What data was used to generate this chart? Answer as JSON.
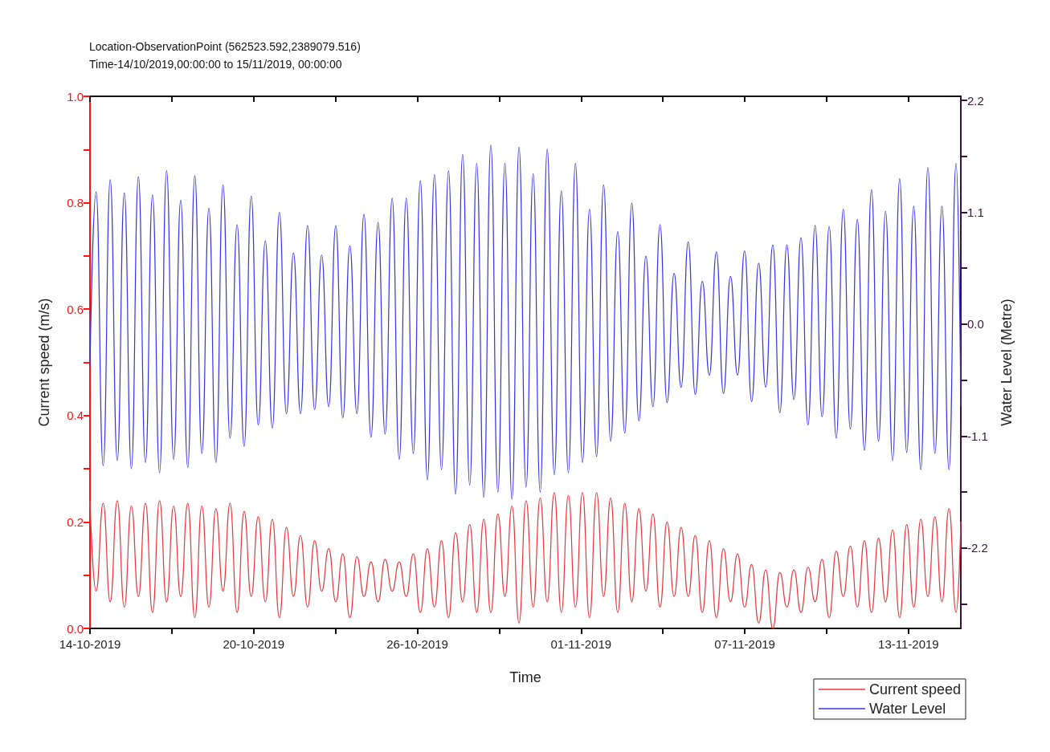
{
  "chart_data": {
    "type": "line",
    "title": "Location-ObservationPoint (562523.592,2389079.516)",
    "subtitle": "Time-14/10/2019,00:00:00 to 15/11/2019, 00:00:00",
    "xlabel": "Time",
    "ylabel": "Current speed (m/s)",
    "y2label": "Water Level (Metre)",
    "x": [
      "2019-10-14T00:00",
      "2019-10-14T05:24",
      "2019-10-14T11:36",
      "2019-10-14T17:48",
      "2019-10-15T00:00",
      "2019-10-15T06:12",
      "2019-10-15T12:24",
      "2019-10-15T18:36",
      "2019-10-16T00:48",
      "2019-10-16T07:00",
      "2019-10-16T13:12",
      "2019-10-16T19:24",
      "2019-10-17T01:36",
      "2019-10-17T07:48",
      "2019-10-17T14:00",
      "2019-10-17T20:12",
      "2019-10-18T02:24",
      "2019-10-18T08:36",
      "2019-10-18T14:48",
      "2019-10-18T21:00",
      "2019-10-19T03:12",
      "2019-10-19T09:24",
      "2019-10-19T15:36",
      "2019-10-19T21:48",
      "2019-10-20T04:00",
      "2019-10-20T10:12",
      "2019-10-20T16:24",
      "2019-10-20T22:36",
      "2019-10-21T04:48",
      "2019-10-21T11:00",
      "2019-10-21T17:12",
      "2019-10-21T23:24",
      "2019-10-22T05:36",
      "2019-10-22T11:48",
      "2019-10-22T18:00",
      "2019-10-23T00:12",
      "2019-10-23T06:24",
      "2019-10-23T12:36",
      "2019-10-23T18:48",
      "2019-10-24T01:00",
      "2019-10-24T07:12",
      "2019-10-24T13:24",
      "2019-10-24T19:36",
      "2019-10-25T01:48",
      "2019-10-25T08:00",
      "2019-10-25T14:12",
      "2019-10-25T20:24",
      "2019-10-26T02:36",
      "2019-10-26T08:48",
      "2019-10-26T15:00",
      "2019-10-26T21:12",
      "2019-10-27T03:24",
      "2019-10-27T09:36",
      "2019-10-27T15:48",
      "2019-10-27T22:00",
      "2019-10-28T04:12",
      "2019-10-28T10:24",
      "2019-10-28T16:36",
      "2019-10-28T22:48",
      "2019-10-29T05:00",
      "2019-10-29T11:12",
      "2019-10-29T17:24",
      "2019-10-29T23:36",
      "2019-10-30T05:48",
      "2019-10-30T12:00",
      "2019-10-30T18:12",
      "2019-10-31T00:24",
      "2019-10-31T06:36",
      "2019-10-31T12:48",
      "2019-10-31T19:00",
      "2019-11-01T01:12",
      "2019-11-01T07:24",
      "2019-11-01T13:36",
      "2019-11-01T19:48",
      "2019-11-02T02:00",
      "2019-11-02T08:12",
      "2019-11-02T14:24",
      "2019-11-02T20:36",
      "2019-11-03T02:48",
      "2019-11-03T09:00",
      "2019-11-03T15:12",
      "2019-11-03T21:24",
      "2019-11-04T03:36",
      "2019-11-04T09:48",
      "2019-11-04T16:00",
      "2019-11-04T22:12",
      "2019-11-05T04:24",
      "2019-11-05T10:36",
      "2019-11-05T16:48",
      "2019-11-05T23:00",
      "2019-11-06T05:12",
      "2019-11-06T11:24",
      "2019-11-06T17:36",
      "2019-11-06T23:48",
      "2019-11-07T06:00",
      "2019-11-07T12:12",
      "2019-11-07T18:24",
      "2019-11-08T00:36",
      "2019-11-08T06:48",
      "2019-11-08T13:00",
      "2019-11-08T19:12",
      "2019-11-09T01:24",
      "2019-11-09T07:36",
      "2019-11-09T13:48",
      "2019-11-09T20:00",
      "2019-11-10T02:12",
      "2019-11-10T08:24",
      "2019-11-10T14:36",
      "2019-11-10T20:48",
      "2019-11-11T03:00",
      "2019-11-11T09:12",
      "2019-11-11T15:24",
      "2019-11-11T21:36",
      "2019-11-12T03:48",
      "2019-11-12T10:00",
      "2019-11-12T16:12",
      "2019-11-12T22:24",
      "2019-11-13T04:36",
      "2019-11-13T10:48",
      "2019-11-13T17:00",
      "2019-11-13T23:12",
      "2019-11-14T05:24",
      "2019-11-14T11:36",
      "2019-11-14T17:48",
      "2019-11-14T22:00"
    ],
    "series": [
      {
        "name": "Current speed",
        "color": "#e8363a",
        "axis": "y",
        "values": [
          0.24,
          0.07,
          0.235,
          0.05,
          0.24,
          0.04,
          0.23,
          0.06,
          0.235,
          0.03,
          0.24,
          0.05,
          0.23,
          0.06,
          0.235,
          0.02,
          0.23,
          0.04,
          0.225,
          0.07,
          0.235,
          0.03,
          0.22,
          0.06,
          0.21,
          0.05,
          0.205,
          0.02,
          0.19,
          0.06,
          0.175,
          0.04,
          0.165,
          0.07,
          0.15,
          0.05,
          0.14,
          0.02,
          0.135,
          0.06,
          0.125,
          0.05,
          0.13,
          0.07,
          0.125,
          0.06,
          0.14,
          0.03,
          0.15,
          0.04,
          0.165,
          0.02,
          0.18,
          0.05,
          0.195,
          0.03,
          0.205,
          0.03,
          0.215,
          0.06,
          0.23,
          0.01,
          0.24,
          0.04,
          0.245,
          0.05,
          0.255,
          0.03,
          0.25,
          0.04,
          0.255,
          0.02,
          0.255,
          0.06,
          0.245,
          0.03,
          0.235,
          0.05,
          0.225,
          0.07,
          0.215,
          0.04,
          0.2,
          0.06,
          0.19,
          0.06,
          0.175,
          0.03,
          0.165,
          0.02,
          0.15,
          0.05,
          0.14,
          0.04,
          0.12,
          0.01,
          0.11,
          0.0,
          0.105,
          0.04,
          0.11,
          0.03,
          0.115,
          0.05,
          0.13,
          0.02,
          0.145,
          0.06,
          0.155,
          0.04,
          0.165,
          0.03,
          0.17,
          0.05,
          0.185,
          0.02,
          0.195,
          0.04,
          0.205,
          0.06,
          0.21,
          0.05,
          0.225,
          0.03,
          0.2
        ]
      },
      {
        "name": "Water Level",
        "color": "#3535e0",
        "axis": "y2",
        "values": [
          -0.4,
          1.3,
          -1.39,
          1.42,
          -1.34,
          1.29,
          -1.42,
          1.45,
          -1.36,
          1.27,
          -1.46,
          1.51,
          -1.33,
          1.22,
          -1.41,
          1.46,
          -1.27,
          1.14,
          -1.36,
          1.37,
          -1.12,
          0.98,
          -1.2,
          1.26,
          -0.99,
          0.82,
          -1.02,
          1.1,
          -0.88,
          0.7,
          -0.88,
          0.97,
          -0.84,
          0.68,
          -0.81,
          0.97,
          -0.92,
          0.77,
          -0.88,
          1.08,
          -1.11,
          1.0,
          -1.08,
          1.24,
          -1.33,
          1.24,
          -1.27,
          1.41,
          -1.53,
          1.47,
          -1.43,
          1.51,
          -1.67,
          1.67,
          -1.58,
          1.58,
          -1.7,
          1.76,
          -1.65,
          1.58,
          -1.72,
          1.74,
          -1.6,
          1.48,
          -1.65,
          1.72,
          -1.48,
          1.31,
          -1.46,
          1.58,
          -1.36,
          1.13,
          -1.3,
          1.37,
          -1.15,
          0.91,
          -1.07,
          1.19,
          -0.95,
          0.67,
          -0.81,
          0.98,
          -0.77,
          0.5,
          -0.62,
          0.81,
          -0.69,
          0.42,
          -0.5,
          0.71,
          -0.68,
          0.47,
          -0.5,
          0.72,
          -0.76,
          0.6,
          -0.62,
          0.78,
          -0.87,
          0.78,
          -0.74,
          0.85,
          -0.99,
          0.97,
          -0.91,
          0.96,
          -1.12,
          1.13,
          -1.03,
          1.03,
          -1.24,
          1.32,
          -1.15,
          1.11,
          -1.34,
          1.43,
          -1.26,
          1.16,
          -1.43,
          1.54,
          -1.27,
          1.16,
          -1.43,
          1.58,
          -0.8
        ]
      }
    ],
    "xlim": [
      "2019-10-14",
      "2019-11-14T22:00"
    ],
    "xticks": [
      {
        "value": "2019-10-14",
        "label": "14-10-2019"
      },
      {
        "value": "2019-10-17",
        "label": null
      },
      {
        "value": "2019-10-20",
        "label": "20-10-2019"
      },
      {
        "value": "2019-10-23",
        "label": null
      },
      {
        "value": "2019-10-26",
        "label": "26-10-2019"
      },
      {
        "value": "2019-10-29",
        "label": null
      },
      {
        "value": "2019-11-01",
        "label": "01-11-2019"
      },
      {
        "value": "2019-11-04",
        "label": null
      },
      {
        "value": "2019-11-07",
        "label": "07-11-2019"
      },
      {
        "value": "2019-11-10",
        "label": null
      },
      {
        "value": "2019-11-13",
        "label": "13-11-2019"
      }
    ],
    "ylim": [
      0,
      1
    ],
    "yticks": [
      {
        "value": 0,
        "label": "0.0"
      },
      {
        "value": 0.1,
        "label": null
      },
      {
        "value": 0.2,
        "label": "0.2"
      },
      {
        "value": 0.3,
        "label": null
      },
      {
        "value": 0.4,
        "label": "0.4"
      },
      {
        "value": 0.5,
        "label": null
      },
      {
        "value": 0.6,
        "label": "0.6"
      },
      {
        "value": 0.7,
        "label": null
      },
      {
        "value": 0.8,
        "label": "0.8"
      },
      {
        "value": 0.9,
        "label": null
      },
      {
        "value": 1,
        "label": "1.0"
      }
    ],
    "y2lim": [
      -2.99,
      2.24
    ],
    "y2ticks": [
      {
        "value": -2.75,
        "label": null
      },
      -2.2,
      {
        "value": -1.65,
        "label": null
      },
      -1.1,
      {
        "value": -0.55,
        "label": null
      },
      {
        "value": 0,
        "label": "0.0"
      },
      {
        "value": 0.55,
        "label": null
      },
      1.1,
      {
        "value": 1.65,
        "label": null
      },
      2.2
    ],
    "grid": false,
    "legend": "bottom right",
    "marker": "none",
    "line_style": "solid"
  }
}
